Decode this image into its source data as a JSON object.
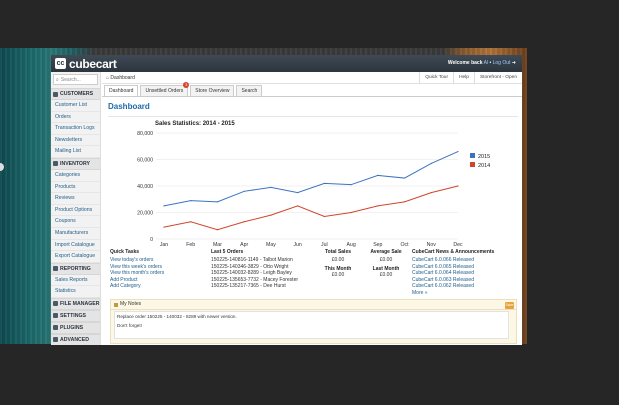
{
  "brand": {
    "badge": "cc",
    "name": "cubecart"
  },
  "header": {
    "welcome_prefix": "Welcome back",
    "user": "Al",
    "logout": "Log Out"
  },
  "search": {
    "placeholder": "Search..."
  },
  "sidebar": {
    "sections": [
      {
        "title": "Customers",
        "items": [
          "Customer List",
          "Orders",
          "Transaction Logs",
          "Newsletters",
          "Mailing List"
        ]
      },
      {
        "title": "Inventory",
        "items": [
          "Categories",
          "Products",
          "Reviews",
          "Product Options",
          "Coupons",
          "Manufacturers",
          "Import Catalogue",
          "Export Catalogue"
        ]
      },
      {
        "title": "Reporting",
        "items": [
          "Sales Reports",
          "Statistics"
        ]
      },
      {
        "title": "File Manager",
        "items": []
      },
      {
        "title": "Settings",
        "items": []
      },
      {
        "title": "Plugins",
        "items": []
      },
      {
        "title": "Advanced",
        "items": []
      }
    ]
  },
  "breadcrumb": {
    "label": "Dashboard"
  },
  "top_links": {
    "quick_tour": "Quick Tour",
    "help": "Help",
    "storefront": "Storefront - Open"
  },
  "tabs": [
    {
      "label": "Dashboard",
      "badge": ""
    },
    {
      "label": "Unsettled Orders",
      "badge": "3"
    },
    {
      "label": "Store Overview",
      "badge": ""
    },
    {
      "label": "Search",
      "badge": ""
    }
  ],
  "page_title": "Dashboard",
  "chart_data": {
    "type": "line",
    "title": "Sales Statistics: 2014 - 2015",
    "categories": [
      "Jan",
      "Feb",
      "Mar",
      "Apr",
      "May",
      "Jun",
      "Jul",
      "Aug",
      "Sep",
      "Oct",
      "Nov",
      "Dec"
    ],
    "ylim": [
      0,
      80000
    ],
    "yticks": [
      "0",
      "20,000",
      "40,000",
      "60,000",
      "80,000"
    ],
    "grid": true,
    "legend_position": "right",
    "series": [
      {
        "name": "2015",
        "color": "#3b73c1",
        "values": [
          25000,
          29000,
          28000,
          36000,
          39000,
          35000,
          42000,
          41000,
          48000,
          46000,
          57000,
          66000
        ]
      },
      {
        "name": "2014",
        "color": "#d0452b",
        "values": [
          9000,
          13000,
          7000,
          13000,
          18000,
          25000,
          17000,
          20000,
          25000,
          28000,
          35000,
          40000
        ]
      }
    ]
  },
  "quick_tasks": {
    "title": "Quick Tasks",
    "items": [
      "View today's orders",
      "View this week's orders",
      "View this month's orders",
      "Add Product",
      "Add Category"
    ]
  },
  "last_orders": {
    "title": "Last 5 Orders",
    "items": [
      {
        "id": "150225-140816-1149",
        "name": "Talbot Marion"
      },
      {
        "id": "150225-140346-3829",
        "name": "Otto Wright"
      },
      {
        "id": "150225-140032-8289",
        "name": "Leigh Bayley"
      },
      {
        "id": "150225-135653-7732",
        "name": "Macey Forester"
      },
      {
        "id": "150225-135217-7365",
        "name": "Dee Hurst"
      }
    ]
  },
  "totals": {
    "total_sales_label": "Total Sales",
    "total_sales": "£0.00",
    "this_month_label": "This Month",
    "this_month": "£0.00",
    "avg_sale_label": "Average Sale",
    "avg_sale": "£0.00",
    "last_month_label": "Last Month",
    "last_month": "£0.00"
  },
  "news": {
    "title": "CubeCart News & Announcements",
    "items": [
      "CubeCart 6.0.066 Released",
      "CubeCart 6.0.065 Released",
      "CubeCart 6.0.064 Released",
      "CubeCart 6.0.063 Released",
      "CubeCart 6.0.062 Released"
    ],
    "more": "More »"
  },
  "notes": {
    "title": "My Notes",
    "save": "Save",
    "lines": [
      "Replace order 150225 - 140032 - 8289 with newer version.",
      "Don't forget!"
    ]
  }
}
